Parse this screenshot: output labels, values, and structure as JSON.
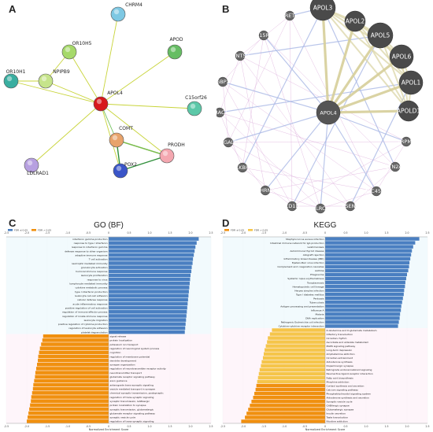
{
  "panels": {
    "a": "A",
    "b": "B",
    "c": "C",
    "d": "D"
  },
  "string_network": {
    "nodes": [
      "CHRM4",
      "OR10H5",
      "APOD",
      "OR10H1",
      "NPIPB9",
      "APOL4",
      "C15orf26",
      "COMT",
      "PRODH",
      "LDLRAD1",
      "POX2"
    ],
    "colors": {
      "CHRM4": "#7ec8e3",
      "OR10H5": "#a6d96a",
      "APOD": "#66bd63",
      "OR10H1": "#3aaea0",
      "NPIPB9": "#c6e48b",
      "APOL4": "#d7191c",
      "C15orf26": "#5cc8a8",
      "COMT": "#e8a36b",
      "PRODH": "#f4a7b0",
      "LDLRAD1": "#b7a0e0",
      "POX2": "#3a55c8"
    }
  },
  "genemania_network": {
    "center": "APOL4",
    "large_nodes": [
      "APOL3",
      "APOL2",
      "APOL5",
      "APOL6",
      "APOL1",
      "APOLD1"
    ],
    "small_nodes": [
      "RET",
      "IL15RA",
      "WNT5B",
      "GBP2",
      "TRAC1",
      "B3GALT5",
      "ALKBH4",
      "CHRNE",
      "CD1D",
      "NLRC5",
      "PSEN2",
      "SLC45A3",
      "BTN2A2",
      "TRPM8"
    ]
  },
  "chart_data": [
    {
      "type": "bar",
      "title": "GO (BF)",
      "xlabel": "Normalized Enrichment Score",
      "xlim": [
        -2.5,
        2.5
      ],
      "ticks": [
        "-2.5",
        "-2.0",
        "-1.5",
        "-1.0",
        "-0.5",
        "0",
        "0.5",
        "1.0",
        "1.5",
        "2.0",
        "2.5"
      ],
      "legend": [
        "FDR ≤ 0.05",
        "FDR > 0.05"
      ],
      "positive_color": "#4a7fc1",
      "negative_color": "#f0900f",
      "positive": {
        "categories": [
          "interferon gamma production",
          "response to type I interferon",
          "response to interferon gamma",
          "defense response to other organism",
          "adaptive immune response",
          "T cell activation",
          "neutrophil mediated immunity",
          "granulocyte activation",
          "humoral immune response",
          "leukocyte proliferation",
          "response to virus",
          "lymphocyte mediated immunity",
          "cytokine metabolic process",
          "type I interferon production",
          "leukocyte cell-cell adhesion",
          "cellular defense response",
          "acute inflammatory response",
          "positive regulation of cell activation",
          "regulation of immune effector process",
          "regulation of innate immune response",
          "leukocyte migration",
          "positive regulation of cytokine production",
          "regulation of leukocyte adhesion",
          "platelet degranulation"
        ],
        "values": [
          2.2,
          2.15,
          2.12,
          2.1,
          2.08,
          2.06,
          2.05,
          2.03,
          2.02,
          2.0,
          1.99,
          1.98,
          1.97,
          1.96,
          1.95,
          1.94,
          1.93,
          1.92,
          1.91,
          1.9,
          1.89,
          1.88,
          1.87,
          1.86
        ]
      },
      "negative": {
        "categories": [
          "signal release",
          "protein localization",
          "potassium ion transport",
          "regulation of neurological system process",
          "cognition",
          "regulation of membrane potential",
          "dendrite development",
          "synapse organization",
          "regulation of neurotransmitter receptor activity",
          "neurotransmitter transport",
          "glutamate receptor signaling pathway",
          "axon guidance",
          "anterograde trans-synaptic signaling",
          "vesicle mediated transport in synapse",
          "chemical synaptic transmission, postsynaptic",
          "regulation of trans-synaptic signaling",
          "synaptic transmission, GABAergic",
          "protein localization to synapse",
          "synaptic transmission, glutamatergic",
          "glutamate receptor signaling pathway",
          "synaptic vesicle cycle",
          "regulation of trans-synaptic signaling"
        ],
        "values": [
          -1.6,
          -1.62,
          -1.65,
          -1.68,
          -1.7,
          -1.72,
          -1.73,
          -1.75,
          -1.77,
          -1.79,
          -1.8,
          -1.82,
          -1.84,
          -1.85,
          -1.87,
          -1.89,
          -1.9,
          -1.92,
          -1.94,
          -1.96,
          -1.98,
          -2.0
        ]
      }
    },
    {
      "type": "bar",
      "title": "KEGG",
      "xlabel": "Normalized Enrichment Score",
      "xlim": [
        -2.5,
        2.5
      ],
      "ticks": [
        "-2.5",
        "-2.0",
        "-1.5",
        "-1.0",
        "-0.5",
        "0",
        "0.5",
        "1.0",
        "1.5",
        "2.0",
        "2.5"
      ],
      "legend": [
        "FDR ≤ 0.05",
        "FDR > 0.05"
      ],
      "positive_color": "#4a7fc1",
      "negative_color": "#f5c54a",
      "negative_dark_color": "#f0900f",
      "positive": {
        "categories": [
          "Staphylococcus aureus infection",
          "Intestinal immune network for IgA production",
          "Leishmaniasis",
          "Autoimmune thyroid disease",
          "Allograft rejection",
          "Inflammatory bowel disease (IBD)",
          "Epstein-Barr virus infection",
          "Complement and coagulation cascades",
          "Asthma",
          "Phagosome",
          "Systemic lupus erythematosus",
          "Toxoplasmosis",
          "Hematopoietic cell lineage",
          "Herpes simplex infection",
          "Type I diabetes mellitus",
          "Pertussis",
          "Tuberculosis",
          "Antigen processing and presentation",
          "Influenza A",
          "Malaria",
          "DNA replication",
          "Pathogenic Escherichia coli infection",
          "Cytokine-cytokine receptor interaction"
        ],
        "values": [
          2.3,
          2.2,
          2.15,
          2.12,
          2.1,
          2.08,
          2.06,
          2.05,
          2.03,
          2.0,
          1.98,
          1.96,
          1.95,
          1.93,
          1.92,
          1.9,
          1.88,
          1.86,
          1.85,
          1.83,
          1.82,
          1.8,
          1.78
        ]
      },
      "negative": {
        "categories": [
          "D-Glutamine and D-glutamate metabolism",
          "Olfactory transduction",
          "Circadian rhythm",
          "Ascorbate and aldarate metabolism",
          "MAPK signaling pathway",
          "Long-term depression",
          "Amphetamine addiction",
          "Circadian entrainment",
          "Aldosterone synthesis",
          "Dopaminergic synapse",
          "Retrograde endocannabinoid signaling",
          "Neuroactive ligand-receptor interaction",
          "Fatty acid biosynthesis",
          "Morphine addiction",
          "Cortisol synthesis and secretion",
          "Calcium signaling pathway",
          "Phosphatidylinositol signaling system",
          "Aldosterone synthesis and secretion",
          "Synaptic vesicle cycle",
          "GABAergic synapse",
          "Glutamatergic synapse",
          "Insulin secretion",
          "Taste transduction",
          "Nicotine addiction"
        ],
        "values": [
          -1.3,
          -1.35,
          -1.4,
          -1.42,
          -1.45,
          -1.48,
          -1.5,
          -1.52,
          -1.55,
          -1.57,
          -1.6,
          -1.62,
          -1.64,
          -1.66,
          -1.68,
          -1.7,
          -1.73,
          -1.76,
          -1.8,
          -1.84,
          -1.88,
          -1.92,
          -1.96,
          -2.05
        ]
      }
    }
  ]
}
